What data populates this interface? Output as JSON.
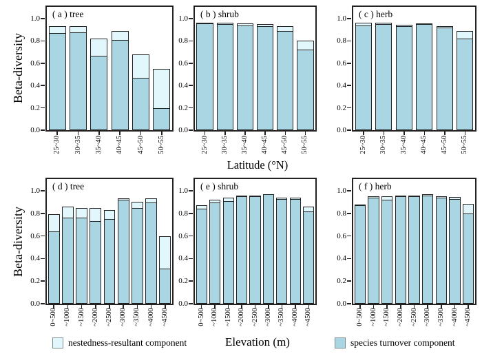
{
  "figure": {
    "y_axis_label": "Beta-diversity",
    "x_axis_label_top": "Latitude (°N)",
    "x_axis_label_bottom": "Elevation (m)"
  },
  "legend": {
    "nestedness_label": "nestedness-resultant component",
    "turnover_label": "species turnover component",
    "nestedness_color": "#e2f7fb",
    "turnover_color": "#a9d6e2"
  },
  "chart_data": [
    {
      "type": "bar",
      "panel_label": "( a ) tree",
      "row": 0,
      "col": 0,
      "xlabel": "Latitude (°N)",
      "ylabel": "Beta-diversity",
      "ylim": [
        0,
        1.1
      ],
      "yticks": [
        0.0,
        0.2,
        0.4,
        0.6,
        0.8,
        1.0
      ],
      "categories": [
        "25~30",
        "30~35",
        "35~40",
        "40~45",
        "45~50",
        "50~55"
      ],
      "series": [
        {
          "name": "species turnover component",
          "values": [
            0.86,
            0.87,
            0.66,
            0.8,
            0.46,
            0.19
          ]
        },
        {
          "name": "nestedness-resultant component",
          "values": [
            0.07,
            0.06,
            0.16,
            0.09,
            0.22,
            0.36
          ]
        }
      ]
    },
    {
      "type": "bar",
      "panel_label": "( b ) shrub",
      "row": 0,
      "col": 1,
      "xlabel": "Latitude (°N)",
      "ylabel": "Beta-diversity",
      "ylim": [
        0,
        1.1
      ],
      "yticks": [
        0.0,
        0.2,
        0.4,
        0.6,
        0.8,
        1.0
      ],
      "categories": [
        "25~30",
        "30~35",
        "35~40",
        "40~45",
        "45~50",
        "50~55"
      ],
      "series": [
        {
          "name": "species turnover component",
          "values": [
            0.95,
            0.94,
            0.93,
            0.92,
            0.88,
            0.71
          ]
        },
        {
          "name": "nestedness-resultant component",
          "values": [
            0.01,
            0.02,
            0.025,
            0.03,
            0.05,
            0.09
          ]
        }
      ]
    },
    {
      "type": "bar",
      "panel_label": "( c ) herb",
      "row": 0,
      "col": 2,
      "xlabel": "Latitude (°N)",
      "ylabel": "Beta-diversity",
      "ylim": [
        0,
        1.1
      ],
      "yticks": [
        0.0,
        0.2,
        0.4,
        0.6,
        0.8,
        1.0
      ],
      "categories": [
        "25~30",
        "30~35",
        "35~40",
        "40~45",
        "45~50",
        "50~55"
      ],
      "series": [
        {
          "name": "species turnover component",
          "values": [
            0.93,
            0.94,
            0.925,
            0.94,
            0.91,
            0.81
          ]
        },
        {
          "name": "nestedness-resultant component",
          "values": [
            0.03,
            0.02,
            0.02,
            0.015,
            0.025,
            0.08
          ]
        }
      ]
    },
    {
      "type": "bar",
      "panel_label": "( d ) tree",
      "row": 1,
      "col": 0,
      "xlabel": "Elevation (m)",
      "ylabel": "Beta-diversity",
      "ylim": [
        0,
        1.1
      ],
      "yticks": [
        0.0,
        0.2,
        0.4,
        0.6,
        0.8,
        1.0
      ],
      "categories": [
        "0~500",
        "~1000",
        "~1500",
        "~2000",
        "~2500",
        "~3000",
        "~3500",
        "~4000",
        "~4500"
      ],
      "series": [
        {
          "name": "species turnover component",
          "values": [
            0.63,
            0.75,
            0.75,
            0.72,
            0.74,
            0.91,
            0.84,
            0.89,
            0.3
          ]
        },
        {
          "name": "nestedness-resultant component",
          "values": [
            0.16,
            0.11,
            0.1,
            0.13,
            0.09,
            0.02,
            0.06,
            0.04,
            0.3
          ]
        }
      ]
    },
    {
      "type": "bar",
      "panel_label": "( e ) shrub",
      "row": 1,
      "col": 1,
      "xlabel": "Elevation (m)",
      "ylabel": "Beta-diversity",
      "ylim": [
        0,
        1.1
      ],
      "yticks": [
        0.0,
        0.2,
        0.4,
        0.6,
        0.8,
        1.0
      ],
      "categories": [
        "0~500",
        "~1000",
        "~1500",
        "~2000",
        "~2500",
        "~3000",
        "~3500",
        "~4000",
        "~4500"
      ],
      "series": [
        {
          "name": "species turnover component",
          "values": [
            0.83,
            0.89,
            0.9,
            0.94,
            0.94,
            0.96,
            0.92,
            0.92,
            0.81
          ]
        },
        {
          "name": "nestedness-resultant component",
          "values": [
            0.04,
            0.03,
            0.04,
            0.015,
            0.02,
            0.01,
            0.02,
            0.02,
            0.05
          ]
        }
      ]
    },
    {
      "type": "bar",
      "panel_label": "( f ) herb",
      "row": 1,
      "col": 2,
      "xlabel": "Elevation (m)",
      "ylabel": "Beta-diversity",
      "ylim": [
        0,
        1.1
      ],
      "yticks": [
        0.0,
        0.2,
        0.4,
        0.6,
        0.8,
        1.0
      ],
      "categories": [
        "0~500",
        "~1000",
        "~1500",
        "~2000",
        "~2500",
        "~3000",
        "~3500",
        "~4000",
        "~4500"
      ],
      "series": [
        {
          "name": "species turnover component",
          "values": [
            0.86,
            0.93,
            0.91,
            0.94,
            0.94,
            0.95,
            0.93,
            0.92,
            0.79
          ]
        },
        {
          "name": "nestedness-resultant component",
          "values": [
            0.02,
            0.02,
            0.04,
            0.015,
            0.02,
            0.02,
            0.02,
            0.025,
            0.095
          ]
        }
      ]
    }
  ]
}
